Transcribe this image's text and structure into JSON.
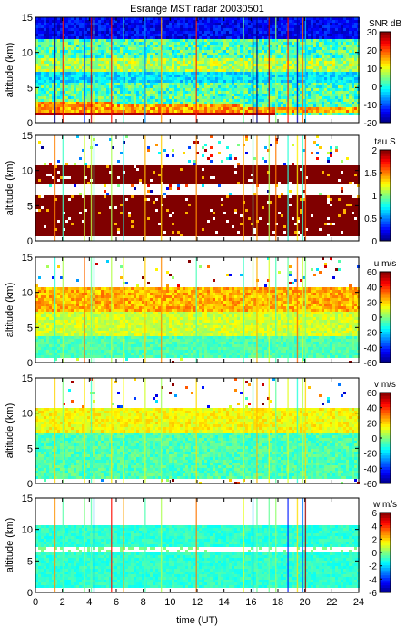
{
  "chart_data": {
    "type": "heatmap",
    "title": "Esrange MST radar 20030501",
    "xlabel": "time (UT)",
    "xlim": [
      0,
      24
    ],
    "xticks": [
      0,
      2,
      4,
      6,
      8,
      10,
      12,
      14,
      16,
      18,
      20,
      22,
      24
    ],
    "colormap": "jet",
    "panels": [
      {
        "ylabel": "altitude (km)",
        "ylim": [
          0,
          15
        ],
        "yticks": [
          0,
          5,
          10,
          15
        ],
        "colorbar_label": "SNR dB",
        "clim": [
          -20,
          30
        ],
        "colorbar_ticks": [
          -20,
          -10,
          0,
          10,
          20,
          30
        ]
      },
      {
        "ylabel": "altitude (km)",
        "ylim": [
          0,
          15
        ],
        "yticks": [
          0,
          5,
          10,
          15
        ],
        "colorbar_label": "tau S",
        "clim": [
          0,
          2
        ],
        "colorbar_ticks": [
          0,
          0.5,
          1,
          1.5,
          2
        ]
      },
      {
        "ylabel": "altitude (km)",
        "ylim": [
          0,
          15
        ],
        "yticks": [
          0,
          5,
          10,
          15
        ],
        "colorbar_label": "u m/s",
        "clim": [
          -60,
          60
        ],
        "colorbar_ticks": [
          -60,
          -40,
          -20,
          0,
          20,
          40,
          60
        ]
      },
      {
        "ylabel": "altitude (km)",
        "ylim": [
          0,
          15
        ],
        "yticks": [
          0,
          5,
          10,
          15
        ],
        "colorbar_label": "v m/s",
        "clim": [
          -60,
          60
        ],
        "colorbar_ticks": [
          -60,
          -40,
          -20,
          0,
          20,
          40,
          60
        ]
      },
      {
        "ylabel": "altitude (km)",
        "ylim": [
          0,
          15
        ],
        "yticks": [
          0,
          5,
          10,
          15
        ],
        "colorbar_label": "w m/s",
        "clim": [
          -6,
          6
        ],
        "colorbar_ticks": [
          -6,
          -4,
          -2,
          0,
          2,
          4,
          6
        ]
      }
    ]
  }
}
